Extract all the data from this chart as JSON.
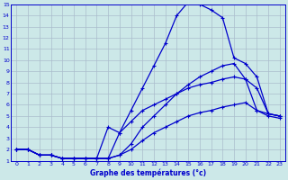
{
  "xlabel": "Graphe des températures (°c)",
  "bg_color": "#cce8e8",
  "grid_color": "#aabccc",
  "line_color": "#0000cc",
  "xlim": [
    -0.5,
    23.5
  ],
  "ylim": [
    1,
    15
  ],
  "xticks": [
    0,
    1,
    2,
    3,
    4,
    5,
    6,
    7,
    8,
    9,
    10,
    11,
    12,
    13,
    14,
    15,
    16,
    17,
    18,
    19,
    20,
    21,
    22,
    23
  ],
  "yticks": [
    1,
    2,
    3,
    4,
    5,
    6,
    7,
    8,
    9,
    10,
    11,
    12,
    13,
    14,
    15
  ],
  "line1_x": [
    0,
    1,
    2,
    3,
    4,
    5,
    6,
    7,
    8,
    9,
    10,
    11,
    12,
    13,
    14,
    15,
    16,
    17,
    18,
    19,
    20,
    21,
    22,
    23
  ],
  "line1_y": [
    2.0,
    2.0,
    1.5,
    1.5,
    1.2,
    1.2,
    1.2,
    1.2,
    1.2,
    3.5,
    5.5,
    7.5,
    9.5,
    11.5,
    14.0,
    15.2,
    15.0,
    14.5,
    13.8,
    10.2,
    9.7,
    8.5,
    5.2,
    5.0
  ],
  "line2_x": [
    0,
    1,
    2,
    3,
    4,
    5,
    6,
    7,
    8,
    9,
    10,
    11,
    12,
    13,
    14,
    15,
    16,
    17,
    18,
    19,
    20,
    21,
    22,
    23
  ],
  "line2_y": [
    2.0,
    2.0,
    1.5,
    1.5,
    1.2,
    1.2,
    1.2,
    1.2,
    1.2,
    1.5,
    2.5,
    4.0,
    5.0,
    6.0,
    7.0,
    7.8,
    8.5,
    9.0,
    9.5,
    9.7,
    8.3,
    7.5,
    5.2,
    5.0
  ],
  "line3_x": [
    0,
    1,
    2,
    3,
    4,
    5,
    6,
    7,
    8,
    9,
    10,
    11,
    12,
    13,
    14,
    15,
    16,
    17,
    18,
    19,
    20,
    21,
    22,
    23
  ],
  "line3_y": [
    2.0,
    2.0,
    1.5,
    1.5,
    1.2,
    1.2,
    1.2,
    1.2,
    4.0,
    3.5,
    4.5,
    5.5,
    6.0,
    6.5,
    7.0,
    7.5,
    7.8,
    8.0,
    8.3,
    8.5,
    8.3,
    5.5,
    5.2,
    5.0
  ],
  "line4_x": [
    0,
    1,
    2,
    3,
    4,
    5,
    6,
    7,
    8,
    9,
    10,
    11,
    12,
    13,
    14,
    15,
    16,
    17,
    18,
    19,
    20,
    21,
    22,
    23
  ],
  "line4_y": [
    2.0,
    2.0,
    1.5,
    1.5,
    1.2,
    1.2,
    1.2,
    1.2,
    1.2,
    1.5,
    2.0,
    2.8,
    3.5,
    4.0,
    4.5,
    5.0,
    5.3,
    5.5,
    5.8,
    6.0,
    6.2,
    5.5,
    5.0,
    4.8
  ]
}
